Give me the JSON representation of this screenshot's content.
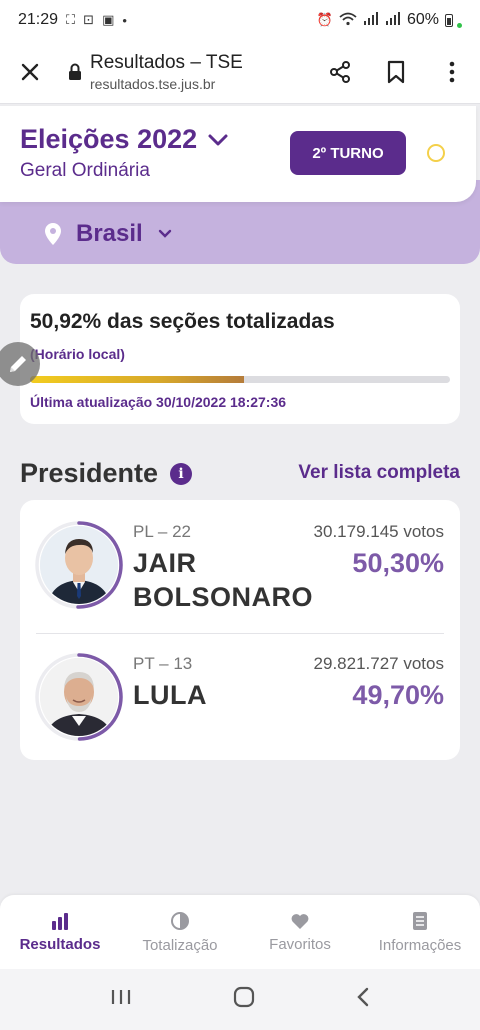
{
  "status_bar": {
    "time": "21:29",
    "battery": "60%"
  },
  "browser": {
    "title": "Resultados – TSE",
    "url": "resultados.tse.jus.br"
  },
  "header": {
    "election": "Eleições 2022",
    "subtitle": "Geral Ordinária",
    "turn_button": "2º TURNO",
    "region": "Brasil"
  },
  "progress": {
    "title": "50,92% das seções totalizadas",
    "local_time_note": "(Horário local)",
    "percent": 50.92,
    "last_update": "Última atualização 30/10/2022 18:27:36"
  },
  "section": {
    "title": "Presidente",
    "see_all": "Ver lista completa"
  },
  "candidates": [
    {
      "party": "PL – 22",
      "name_line1": "JAIR",
      "name_line2": "BOLSONARO",
      "votes": "30.179.145 votos",
      "percent": "50,30%",
      "share": 50.3
    },
    {
      "party": "PT – 13",
      "name_line1": "LULA",
      "name_line2": "",
      "votes": "29.821.727 votos",
      "percent": "49,70%",
      "share": 49.7
    }
  ],
  "bottom_nav": {
    "items": [
      {
        "label": "Resultados",
        "icon": "bar-chart-icon",
        "active": true
      },
      {
        "label": "Totalização",
        "icon": "pie-icon",
        "active": false
      },
      {
        "label": "Favoritos",
        "icon": "heart-icon",
        "active": false
      },
      {
        "label": "Informações",
        "icon": "document-icon",
        "active": false
      }
    ]
  },
  "colors": {
    "primary": "#5b2c8c",
    "accent_light": "#c5b2de",
    "progress": "#f2cc1f"
  }
}
